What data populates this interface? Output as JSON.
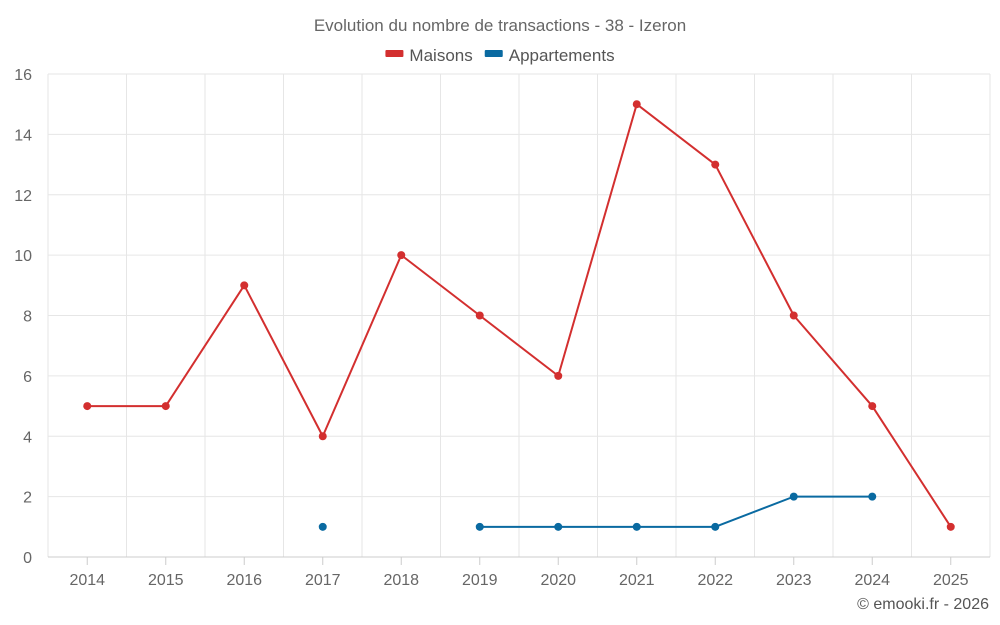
{
  "chart_data": {
    "type": "line",
    "title": "Evolution du nombre de transactions - 38 - Izeron",
    "categories": [
      "2014",
      "2015",
      "2016",
      "2017",
      "2018",
      "2019",
      "2020",
      "2021",
      "2022",
      "2023",
      "2024",
      "2025"
    ],
    "series": [
      {
        "name": "Maisons",
        "color": "#d32f2f",
        "values": [
          5,
          5,
          9,
          4,
          10,
          8,
          6,
          15,
          13,
          8,
          5,
          1
        ]
      },
      {
        "name": "Appartements",
        "color": "#0a6aa1",
        "values": [
          null,
          null,
          null,
          1,
          null,
          1,
          1,
          1,
          1,
          2,
          2,
          null
        ]
      }
    ],
    "ylim": [
      0,
      16
    ],
    "yticks": [
      0,
      2,
      4,
      6,
      8,
      10,
      12,
      14,
      16
    ],
    "xlabel": "",
    "ylabel": "",
    "grid": true,
    "legend_position": "top-center"
  },
  "credit": "© emooki.fr - 2026"
}
